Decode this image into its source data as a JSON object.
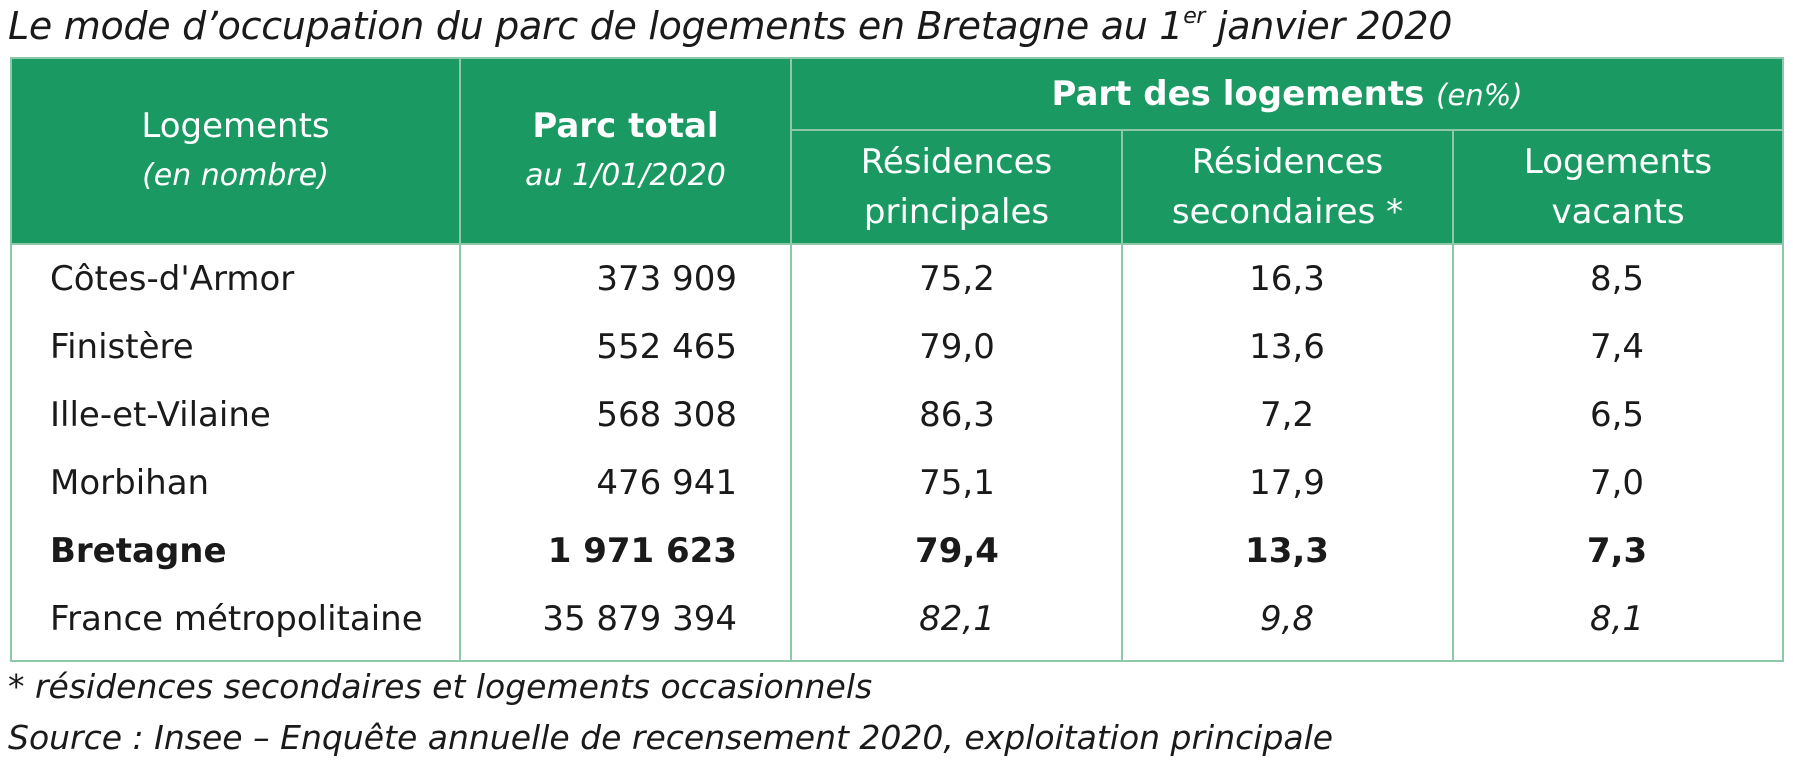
{
  "title": {
    "text_before_sup": "Le mode d’occupation du parc de logements en Bretagne au 1",
    "sup": "er",
    "text_after_sup": " janvier 2020"
  },
  "header": {
    "col1_line1": "Logements",
    "col1_line2": "(en nombre)",
    "col2_line1": "Parc total",
    "col2_line2": "au 1/01/2020",
    "group_label": "Part des logements",
    "group_unit": "(en%)",
    "col3_line1": "Résidences",
    "col3_line2": "principales",
    "col4_line1": "Résidences",
    "col4_line2": "secondaires *",
    "col5_line1": "Logements",
    "col5_line2": "vacants"
  },
  "rows": [
    {
      "name": "Côtes-d'Armor",
      "parc": "373 909",
      "rp": "75,2",
      "rs": "16,3",
      "lv": "8,5"
    },
    {
      "name": "Finistère",
      "parc": "552 465",
      "rp": "79,0",
      "rs": "13,6",
      "lv": "7,4"
    },
    {
      "name": "Ille-et-Vilaine",
      "parc": "568 308",
      "rp": "86,3",
      "rs": "7,2",
      "lv": "6,5"
    },
    {
      "name": "Morbihan",
      "parc": "476 941",
      "rp": "75,1",
      "rs": "17,9",
      "lv": "7,0"
    },
    {
      "name": "Bretagne",
      "parc": "1 971 623",
      "rp": "79,4",
      "rs": "13,3",
      "lv": "7,3"
    },
    {
      "name": "France métropolitaine",
      "parc": "35 879 394",
      "rp": "82,1",
      "rs": "9,8",
      "lv": "8,1"
    }
  ],
  "footnotes": {
    "note": "* résidences secondaires et logements occasionnels",
    "source": "Source : Insee – Enquête annuelle de recensement 2020, exploitation principale"
  },
  "colors": {
    "header_bg": "#1a9a62",
    "grid_lines": "#8dc8a9",
    "header_text": "#ffffff"
  }
}
